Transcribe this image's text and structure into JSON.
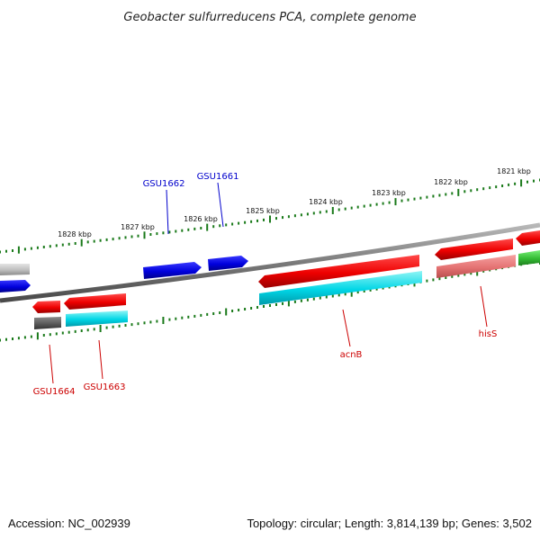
{
  "title": "Geobacter sulfurreducens PCA, complete genome",
  "footer": {
    "accession": "Accession: NC_002939",
    "summary": "Topology: circular; Length: 3,814,139 bp; Genes: 3,502"
  },
  "scale_labels": [
    "1828 kbp",
    "1827 kbp",
    "1826 kbp",
    "1825 kbp",
    "1824 kbp",
    "1823 kbp",
    "1822 kbp",
    "1821 kbp"
  ],
  "gene_labels": {
    "gsu1662": "GSU1662",
    "gsu1661": "GSU1661",
    "gsu1664": "GSU1664",
    "gsu1663": "GSU1663",
    "acnB": "acnB",
    "hisS": "hisS"
  },
  "colors": {
    "forward_gene": "#0000dd",
    "reverse_gene": "#ee0000",
    "rna_like": "#00cccc",
    "pseudo": "#e87878",
    "green_gene": "#33bb33",
    "backbone": "#808080",
    "ticks": "#1a7a1a"
  }
}
